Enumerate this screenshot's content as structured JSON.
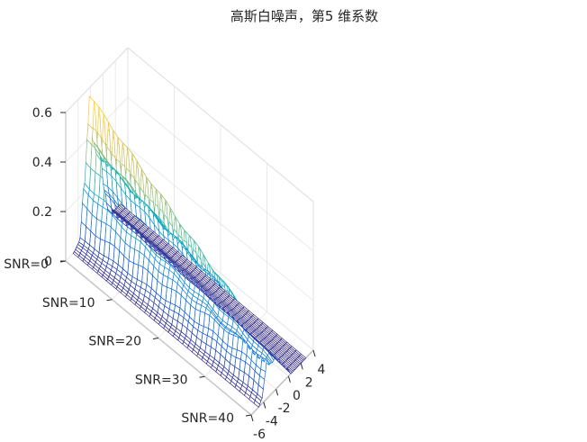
{
  "chart_data": {
    "type": "surface",
    "title": "高斯白噪声，第5 维系数",
    "xlabel": "",
    "ylabel": "",
    "zlabel": "",
    "x_axis": {
      "range": [
        -6,
        4
      ],
      "ticks": [
        -6,
        -4,
        -2,
        0,
        2,
        4
      ],
      "tick_labels": [
        "-6",
        "-4",
        "-2",
        "0",
        "2",
        "4"
      ]
    },
    "y_axis": {
      "range": [
        0,
        40
      ],
      "ticks": [
        0,
        10,
        20,
        30,
        40
      ],
      "tick_labels": [
        "SNR=0",
        "SNR=10",
        "SNR=20",
        "SNR=30",
        "SNR=40"
      ]
    },
    "z_axis": {
      "range": [
        0,
        0.6
      ],
      "ticks": [
        0,
        0.2,
        0.4,
        0.6
      ],
      "tick_labels": [
        "0",
        "0.2",
        "0.4",
        "0.6"
      ]
    },
    "grid": true,
    "colormap": "parula",
    "colormap_stops": [
      "#352a87",
      "#0f5cdd",
      "#1481d6",
      "#06a4ca",
      "#2eb7a4",
      "#87bf77",
      "#d1bb59",
      "#fec832",
      "#f9fb0e"
    ],
    "series": [
      {
        "y": 0,
        "profile": [
          {
            "x": -6,
            "z": 0.0
          },
          {
            "x": -4.8,
            "z": 0.0
          },
          {
            "x": -3.8,
            "z": 0.02
          },
          {
            "x": -3.0,
            "z": 0.23
          },
          {
            "x": -2.5,
            "z": 0.42
          },
          {
            "x": -2.2,
            "z": 0.57
          },
          {
            "x": -1.6,
            "z": 0.36
          },
          {
            "x": -1.0,
            "z": 0.3
          },
          {
            "x": -0.4,
            "z": 0.28
          },
          {
            "x": 0.2,
            "z": 0.12
          },
          {
            "x": 0.8,
            "z": 0.03
          },
          {
            "x": 2.0,
            "z": 0.0
          },
          {
            "x": 4,
            "z": 0.0
          }
        ]
      },
      {
        "y": 40,
        "profile": [
          {
            "x": -6,
            "z": 0.0
          },
          {
            "x": -4.8,
            "z": 0.0
          },
          {
            "x": -4.3,
            "z": 0.02
          },
          {
            "x": -3.8,
            "z": 0.1
          },
          {
            "x": -3.5,
            "z": 0.16
          },
          {
            "x": -3.1,
            "z": 0.12
          },
          {
            "x": -2.6,
            "z": 0.12
          },
          {
            "x": -2.0,
            "z": 0.15
          },
          {
            "x": -1.2,
            "z": 0.08
          },
          {
            "x": -0.6,
            "z": 0.1
          },
          {
            "x": -0.1,
            "z": 0.03
          },
          {
            "x": 0.4,
            "z": 0.0
          },
          {
            "x": 4,
            "z": 0.0
          }
        ]
      }
    ]
  }
}
